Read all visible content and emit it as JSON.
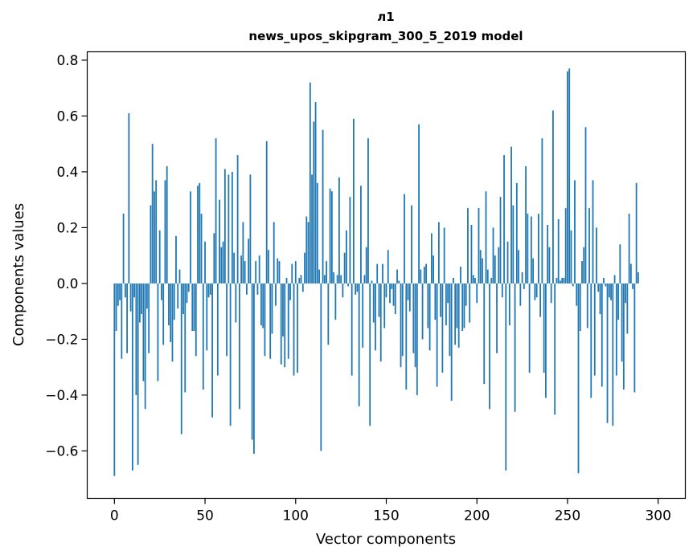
{
  "chart_data": {
    "type": "bar",
    "title": "л1",
    "subtitle": "news_upos_skipgram_300_5_2019 model",
    "xlabel": "Vector components",
    "ylabel": "Components values",
    "xlim": [
      -15,
      315
    ],
    "ylim": [
      -0.77,
      0.83
    ],
    "xticks": [
      0,
      50,
      100,
      150,
      200,
      250,
      300
    ],
    "yticks": [
      -0.6,
      -0.4,
      -0.2,
      0.0,
      0.2,
      0.4,
      0.6,
      0.8
    ],
    "ytick_labels": [
      "−0.6",
      "−0.4",
      "−0.2",
      "0.0",
      "0.2",
      "0.4",
      "0.6",
      "0.8"
    ],
    "bar_color": "#1f77b4",
    "values": [
      -0.69,
      -0.17,
      -0.08,
      -0.06,
      -0.27,
      0.25,
      -0.05,
      -0.25,
      0.61,
      -0.1,
      -0.67,
      -0.05,
      -0.4,
      -0.65,
      -0.14,
      -0.11,
      -0.35,
      -0.45,
      -0.09,
      -0.25,
      0.28,
      0.5,
      0.33,
      0.37,
      -0.35,
      0.19,
      -0.06,
      -0.22,
      0.37,
      0.42,
      -0.15,
      -0.21,
      -0.28,
      -0.13,
      0.17,
      -0.09,
      0.05,
      -0.54,
      -0.11,
      -0.39,
      -0.07,
      -0.03,
      0.33,
      -0.17,
      -0.17,
      -0.26,
      0.35,
      0.36,
      0.25,
      -0.38,
      0.15,
      -0.24,
      -0.05,
      -0.04,
      -0.48,
      0.18,
      0.52,
      -0.33,
      0.3,
      0.13,
      0.15,
      0.41,
      -0.26,
      0.39,
      -0.51,
      0.4,
      0.11,
      -0.14,
      0.46,
      -0.45,
      0.1,
      0.22,
      0.08,
      -0.04,
      0.16,
      0.39,
      -0.56,
      -0.61,
      0.08,
      -0.04,
      0.1,
      -0.15,
      -0.16,
      -0.26,
      0.51,
      0.12,
      -0.27,
      -0.18,
      0.22,
      -0.08,
      0.09,
      0.08,
      -0.29,
      -0.19,
      -0.3,
      0.02,
      -0.27,
      -0.06,
      0.07,
      -0.33,
      0.08,
      -0.32,
      0.02,
      0.03,
      -0.03,
      0.11,
      0.24,
      0.22,
      0.72,
      0.39,
      0.58,
      0.65,
      0.36,
      0.05,
      -0.6,
      0.55,
      0.03,
      0.08,
      -0.22,
      0.34,
      0.33,
      0.04,
      -0.13,
      0.03,
      0.38,
      0.03,
      -0.05,
      0.11,
      0.19,
      -0.01,
      0.31,
      -0.33,
      0.59,
      -0.04,
      -0.03,
      -0.44,
      0.35,
      -0.23,
      0.03,
      0.13,
      0.52,
      -0.51,
      0.01,
      -0.14,
      -0.24,
      0.07,
      -0.12,
      -0.28,
      0.07,
      -0.16,
      -0.05,
      0.12,
      -0.07,
      -0.02,
      -0.08,
      -0.11,
      0.05,
      0.01,
      -0.3,
      -0.26,
      0.32,
      -0.38,
      -0.06,
      -0.1,
      0.28,
      -0.25,
      -0.3,
      -0.4,
      0.57,
      0.05,
      -0.2,
      0.06,
      0.07,
      -0.16,
      -0.24,
      0.18,
      0.1,
      -0.13,
      -0.37,
      0.22,
      -0.12,
      -0.32,
      0.2,
      -0.15,
      -0.07,
      -0.26,
      -0.42,
      0.02,
      -0.22,
      -0.16,
      -0.23,
      0.06,
      -0.17,
      -0.16,
      -0.08,
      0.27,
      -0.14,
      0.21,
      0.03,
      0.02,
      -0.07,
      0.27,
      0.12,
      0.09,
      -0.36,
      0.33,
      0.05,
      -0.45,
      0.02,
      0.2,
      0.1,
      -0.25,
      0.13,
      0.31,
      -0.05,
      0.46,
      -0.67,
      0.15,
      -0.15,
      0.49,
      0.28,
      -0.46,
      0.36,
      0.12,
      -0.08,
      0.04,
      -0.02,
      0.42,
      0.25,
      -0.32,
      0.24,
      0.09,
      -0.06,
      -0.05,
      0.25,
      -0.12,
      0.52,
      -0.32,
      -0.41,
      0.21,
      0.13,
      -0.07,
      0.62,
      -0.47,
      0.02,
      0.23,
      0.01,
      0.02,
      0.02,
      0.27,
      0.76,
      0.77,
      0.19,
      -0.01,
      0.37,
      -0.08,
      -0.68,
      -0.17,
      0.08,
      0.13,
      0.56,
      -0.16,
      0.27,
      -0.41,
      0.37,
      -0.33,
      0.2,
      -0.03,
      -0.11,
      -0.37,
      0.02,
      -0.01,
      -0.5,
      -0.05,
      -0.06,
      -0.51,
      0.03,
      -0.33,
      -0.13,
      0.14,
      -0.28,
      -0.38,
      -0.07,
      -0.18,
      0.25,
      0.07,
      -0.02,
      -0.39,
      0.36,
      0.04
    ]
  }
}
